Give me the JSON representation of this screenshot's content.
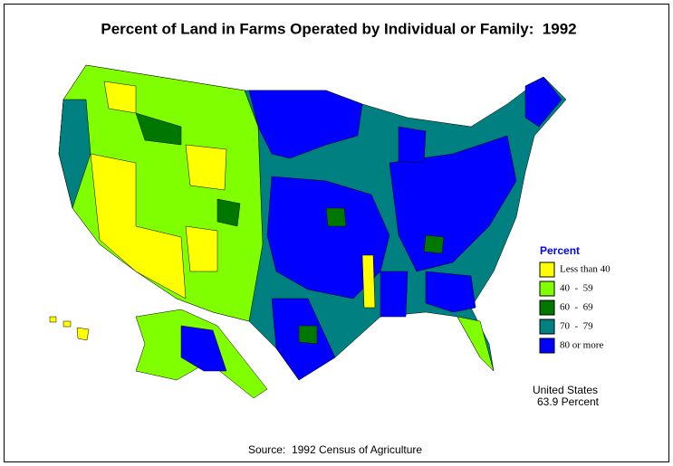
{
  "title": "Percent of Land in Farms Operated by Individual or Family:  1992",
  "legend": {
    "title": "Percent",
    "items": [
      {
        "label": "Less than 40",
        "color": "#ffff00"
      },
      {
        "label": "40  -  59",
        "color": "#80ff00"
      },
      {
        "label": "60  -  69",
        "color": "#007800"
      },
      {
        "label": "70  -  79",
        "color": "#008080"
      },
      {
        "label": "80 or more",
        "color": "#0000ff"
      }
    ]
  },
  "summary": {
    "region": "United States",
    "value": "63.9 Percent"
  },
  "source": "Source:  1992 Census of Agriculture"
}
